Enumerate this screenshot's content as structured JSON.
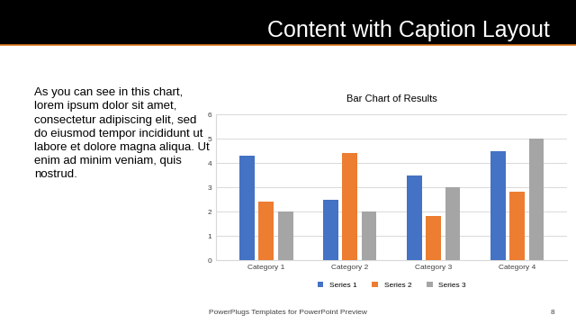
{
  "slide": {
    "title": "Content with Caption Layout",
    "caption": [
      "As you can see in this chart,",
      "lorem ipsum dolor sit amet,",
      "consectetur adipiscing elit, sed",
      "do eiusmod tempor incididunt ut",
      "labore et dolore magna aliqua. Ut",
      "enim ad minim veniam, quis",
      "nostrud."
    ],
    "footer": "PowerPlugs Templates for PowerPoint Preview",
    "page_number": 8
  },
  "chart_data": {
    "type": "bar",
    "title": "Bar Chart of Results",
    "categories": [
      "Category 1",
      "Category 2",
      "Category 3",
      "Category 4"
    ],
    "series": [
      {
        "name": "Series 1",
        "color": "#4472c4",
        "values": [
          4.3,
          2.5,
          3.5,
          4.5
        ]
      },
      {
        "name": "Series 2",
        "color": "#ed7d31",
        "values": [
          2.4,
          4.4,
          1.8,
          2.8
        ]
      },
      {
        "name": "Series 3",
        "color": "#a5a5a5",
        "values": [
          2,
          2,
          3,
          5
        ]
      }
    ],
    "ylim": [
      0,
      6
    ],
    "yticks": [
      0,
      1,
      2,
      3,
      4,
      5,
      6
    ],
    "grid": true,
    "legend": "bottom"
  }
}
